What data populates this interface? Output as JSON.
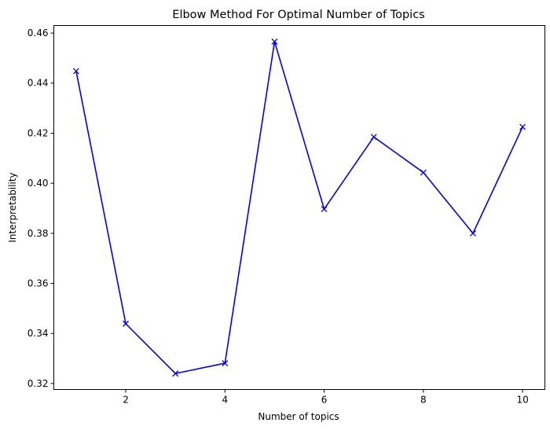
{
  "chart_data": {
    "type": "line",
    "title": "Elbow Method For Optimal Number of Topics",
    "xlabel": "Number of topics",
    "ylabel": "Interpretability",
    "x": [
      1,
      2,
      3,
      4,
      5,
      6,
      7,
      8,
      9,
      10
    ],
    "series": [
      {
        "values": [
          0.4448,
          0.3439,
          0.324,
          0.3281,
          0.4566,
          0.3897,
          0.4185,
          0.4043,
          0.38,
          0.4225
        ],
        "color": "#0000ff",
        "marker": "x"
      }
    ],
    "xlim": [
      0.55,
      10.45
    ],
    "ylim": [
      0.3176,
      0.463
    ],
    "xticks": [
      2,
      4,
      6,
      8,
      10
    ],
    "xtick_labels": [
      "2",
      "4",
      "6",
      "8",
      "10"
    ],
    "yticks": [
      0.32,
      0.34,
      0.36,
      0.38,
      0.4,
      0.42,
      0.44,
      0.46
    ],
    "ytick_labels": [
      "0.32",
      "0.34",
      "0.36",
      "0.38",
      "0.40",
      "0.42",
      "0.44",
      "0.46"
    ],
    "grid": false,
    "legend": "none"
  }
}
